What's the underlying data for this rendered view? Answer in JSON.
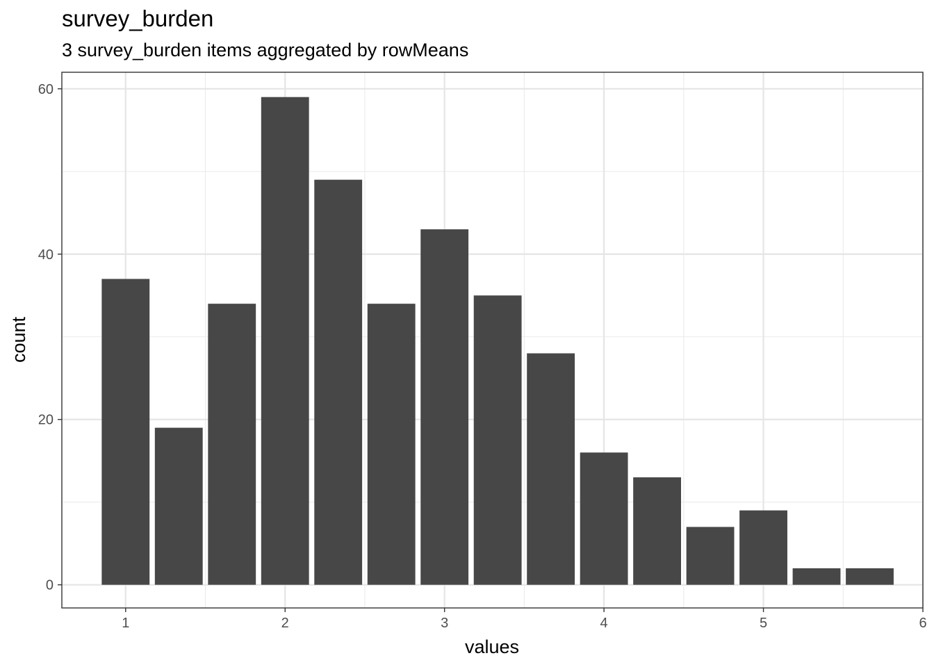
{
  "chart_data": {
    "type": "bar",
    "title": "survey_burden",
    "subtitle": "3 survey_burden items aggregated by rowMeans",
    "xlabel": "values",
    "ylabel": "count",
    "x": [
      1.0,
      1.3333,
      1.6667,
      2.0,
      2.3333,
      2.6667,
      3.0,
      3.3333,
      3.6667,
      4.0,
      4.3333,
      4.6667,
      5.0,
      5.3333,
      5.6667
    ],
    "values": [
      37,
      19,
      34,
      59,
      49,
      34,
      43,
      35,
      28,
      16,
      13,
      7,
      9,
      2,
      2
    ],
    "bar_width": 0.3,
    "xlim": [
      0.6,
      6.0
    ],
    "ylim": [
      -2.8,
      62
    ],
    "xticks": [
      1,
      2,
      3,
      4,
      5,
      6
    ],
    "yticks": [
      0,
      20,
      40,
      60
    ],
    "grid": true,
    "colors": {
      "bar": "#474747",
      "grid_major": "#e5e5e5",
      "grid_minor": "#ebebeb",
      "panel_border": "#333333",
      "tick_text": "#4d4d4d"
    }
  }
}
